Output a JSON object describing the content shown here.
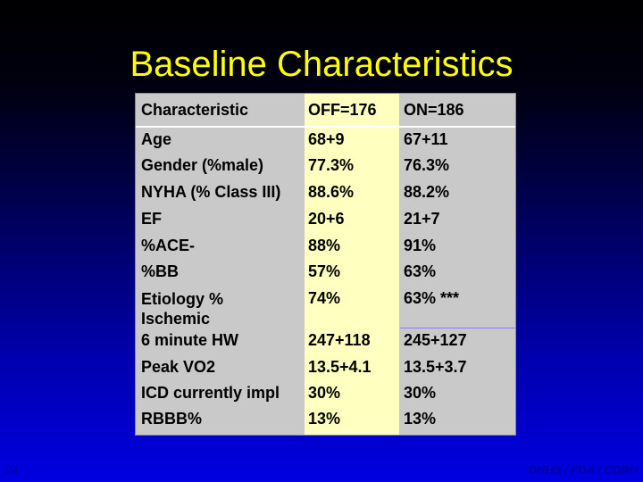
{
  "slide": {
    "title": "Baseline Characteristics",
    "page_number": "24",
    "footer": "DHHS / FDA / CDRH"
  },
  "table": {
    "headers": [
      "Characteristic",
      "OFF=176",
      "ON=186"
    ],
    "rows": [
      [
        "Age",
        "68+9",
        "67+11"
      ],
      [
        "Gender (%male)",
        "77.3%",
        "76.3%"
      ],
      [
        "NYHA (% Class III)",
        "88.6%",
        "88.2%"
      ],
      [
        "EF",
        "20+6",
        "21+7"
      ],
      [
        "%ACE-",
        "88%",
        "91%"
      ],
      [
        "%BB",
        "57%",
        "63%"
      ],
      [
        "Etiology % Ischemic",
        "74%",
        "63% ***"
      ],
      [
        "6 minute HW",
        "247+118",
        "245+127"
      ],
      [
        "Peak VO2",
        "13.5+4.1",
        "13.5+3.7"
      ],
      [
        "ICD currently impl",
        "30%",
        "30%"
      ],
      [
        "RBBB%",
        "13%",
        "13%"
      ]
    ]
  }
}
